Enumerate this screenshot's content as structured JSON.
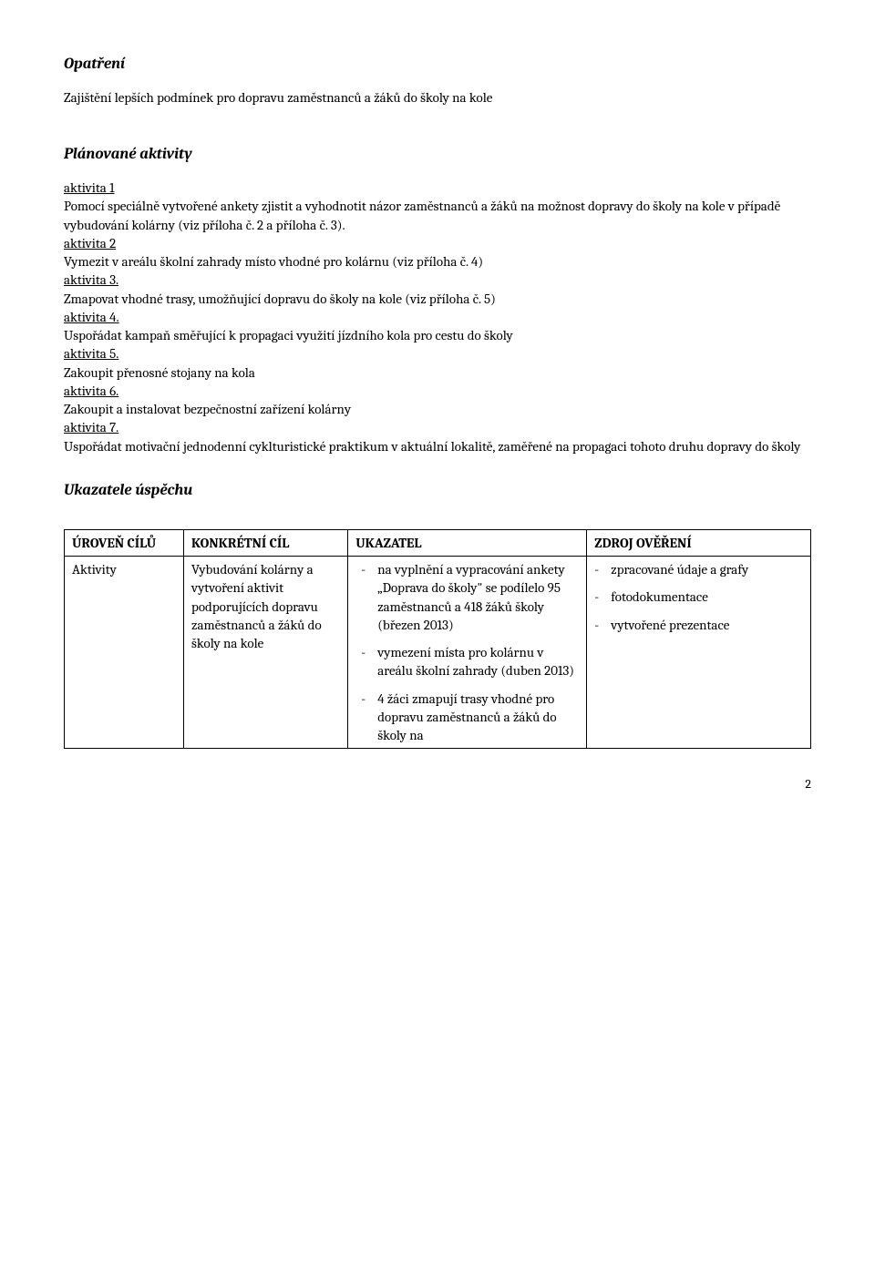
{
  "headings": {
    "opatreni": "Opatření",
    "planovane": "Plánované aktivity",
    "ukazatele": "Ukazatele úspěchu"
  },
  "opatreni_text": "Zajištění lepších podmínek pro dopravu zaměstnanců a žáků do školy na kole",
  "activities": {
    "a1_label": "aktivita 1",
    "a1_text": "Pomocí speciálně vytvořené ankety zjistit a vyhodnotit názor zaměstnanců a žáků na možnost dopravy do školy na kole v případě vybudování kolárny (viz příloha č. 2 a příloha č. 3).",
    "a2_label": "aktivita 2",
    "a2_text": "Vymezit v areálu školní zahrady místo vhodné pro kolárnu (viz příloha č. 4)",
    "a3_label": "aktivita 3.",
    "a3_text": "Zmapovat vhodné trasy, umožňující dopravu do školy na kole (viz příloha č. 5)",
    "a4_label": "aktivita 4.",
    "a4_text": "Uspořádat kampaň směřující k propagaci využití jízdního kola pro cestu do školy",
    "a5_label": "aktivita 5.",
    "a5_text": "Zakoupit přenosné stojany na kola",
    "a6_label": "aktivita 6.",
    "a6_text": "Zakoupit a instalovat bezpečnostní zařízení kolárny",
    "a7_label": "aktivita 7.",
    "a7_text": "Uspořádat motivační jednodenní cyklturistické praktikum v aktuální lokalitě, zaměřené na propagaci tohoto druhu dopravy do školy"
  },
  "table": {
    "headers": {
      "level": "ÚROVEŇ CÍLŮ",
      "goal": "KONKRÉTNÍ CÍL",
      "indicator": "UKAZATEL",
      "source": "ZDROJ OVĚŘENÍ"
    },
    "row1": {
      "level": "Aktivity",
      "goal": "Vybudování kolárny a vytvoření aktivit podporujících dopravu zaměstnanců a žáků do školy na kole",
      "ind1": "na vyplnění a vypracování ankety „Doprava do školy\" se podílelo 95 zaměstnanců a 418 žáků školy (březen 2013)",
      "src1": "zpracované údaje a grafy",
      "ind2": "vymezení místa pro kolárnu v areálu školní zahrady (duben 2013)",
      "src2": "fotodokumentace",
      "ind3": " 4 žáci zmapují trasy vhodné pro dopravu zaměstnanců a žáků do školy na",
      "src3": "vytvořené prezentace"
    }
  },
  "page_number": "2",
  "dash": "-"
}
